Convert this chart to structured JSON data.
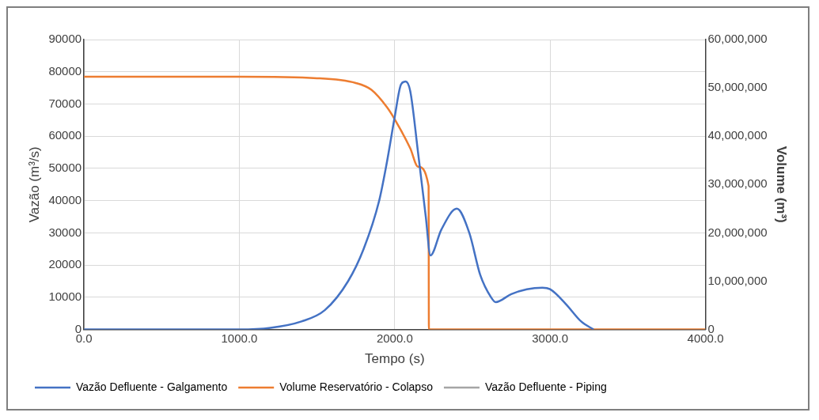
{
  "chart_data": {
    "type": "line",
    "xlabel": "Tempo (s)",
    "ylabel": "Vazão (m³/s)",
    "y2label": "Volume (m³)",
    "xlim": [
      0,
      4000
    ],
    "xticks": [
      {
        "value": 0,
        "label": "0.0"
      },
      {
        "value": 1000,
        "label": "1000.0"
      },
      {
        "value": 2000,
        "label": "2000.0"
      },
      {
        "value": 3000,
        "label": "3000.0"
      },
      {
        "value": 4000,
        "label": "4000.0"
      }
    ],
    "ylim": [
      0,
      90000
    ],
    "yticks": [
      0,
      10000,
      20000,
      30000,
      40000,
      50000,
      60000,
      70000,
      80000,
      90000
    ],
    "y2lim": [
      0,
      60000000
    ],
    "y2ticks": [
      {
        "value": 0,
        "label": "0"
      },
      {
        "value": 10000000,
        "label": "10,000,000"
      },
      {
        "value": 20000000,
        "label": "20,000,000"
      },
      {
        "value": 30000000,
        "label": "30,000,000"
      },
      {
        "value": 40000000,
        "label": "40,000,000"
      },
      {
        "value": 50000000,
        "label": "50,000,000"
      },
      {
        "value": 60000000,
        "label": "60,000,000"
      }
    ],
    "grid": true,
    "legend": "bottom",
    "marker": "none",
    "line_style": "solid",
    "series": [
      {
        "name": "Vazão Defluente - Galgamento",
        "color": "#4472c4",
        "x": [
          0,
          1000,
          1200,
          1400,
          1550,
          1700,
          1800,
          1900,
          1950,
          2000,
          2040,
          2070,
          2100,
          2150,
          2200,
          2230,
          2300,
          2400,
          2480,
          2550,
          2620,
          2650,
          2750,
          2850,
          2950,
          3000,
          3100,
          3200,
          3280
        ],
        "values": [
          0,
          0,
          500,
          2500,
          6000,
          15000,
          25000,
          40000,
          52000,
          66000,
          76000,
          77000,
          74000,
          55000,
          35000,
          23000,
          31000,
          37500,
          30000,
          17000,
          10000,
          8500,
          11000,
          12500,
          13000,
          12500,
          8000,
          2500,
          0
        ]
      },
      {
        "name": "Volume Reservatório - Colapso",
        "color": "#ed7d31",
        "axis": "y2",
        "x": [
          0,
          1000,
          1500,
          1750,
          1850,
          1950,
          2000,
          2100,
          2150,
          2218,
          2220,
          4000
        ],
        "values": [
          52300000,
          52300000,
          52000000,
          51000000,
          49600000,
          46000000,
          43500000,
          37500000,
          33700000,
          29700000,
          0,
          0
        ]
      },
      {
        "name": "Vazão Defluente - Piping",
        "color": "#a5a5a5"
      }
    ]
  }
}
